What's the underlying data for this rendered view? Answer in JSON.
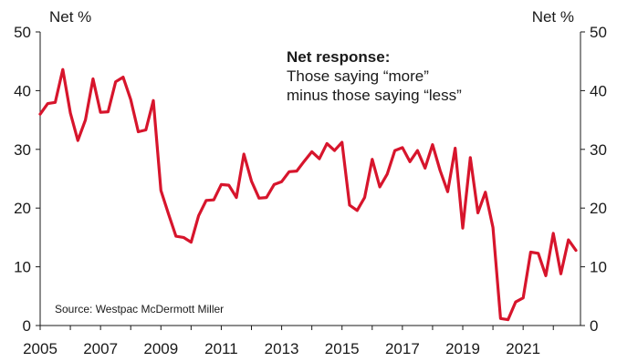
{
  "chart_data": {
    "type": "line",
    "title": "",
    "xlabel": "",
    "ylabel_left": "Net %",
    "ylabel_right": "Net %",
    "ylim": [
      0,
      50
    ],
    "xlim": [
      2005,
      2022.9
    ],
    "y_ticks": [
      0,
      10,
      20,
      30,
      40,
      50
    ],
    "x_ticks": [
      2005,
      2007,
      2009,
      2011,
      2013,
      2015,
      2017,
      2019,
      2021
    ],
    "grid": false,
    "annotation": {
      "heading": "Net response:",
      "line1": "Those saying “more”",
      "line2": "minus those saying “less”"
    },
    "source": "Source: Westpac McDermott Miller",
    "series": [
      {
        "color": "#d7152c",
        "points": [
          [
            2005.0,
            36.0
          ],
          [
            2005.25,
            37.8
          ],
          [
            2005.5,
            38.0
          ],
          [
            2005.75,
            43.6
          ],
          [
            2006.0,
            36.2
          ],
          [
            2006.25,
            31.5
          ],
          [
            2006.5,
            35.0
          ],
          [
            2006.75,
            42.0
          ],
          [
            2007.0,
            36.3
          ],
          [
            2007.25,
            36.4
          ],
          [
            2007.5,
            41.5
          ],
          [
            2007.75,
            42.3
          ],
          [
            2008.0,
            38.5
          ],
          [
            2008.25,
            33.0
          ],
          [
            2008.5,
            33.3
          ],
          [
            2008.75,
            38.3
          ],
          [
            2009.0,
            23.0
          ],
          [
            2009.25,
            19.0
          ],
          [
            2009.5,
            15.2
          ],
          [
            2009.75,
            15.0
          ],
          [
            2010.0,
            14.2
          ],
          [
            2010.25,
            18.7
          ],
          [
            2010.5,
            21.3
          ],
          [
            2010.75,
            21.4
          ],
          [
            2011.0,
            24.0
          ],
          [
            2011.25,
            23.9
          ],
          [
            2011.5,
            21.8
          ],
          [
            2011.75,
            29.2
          ],
          [
            2012.0,
            24.6
          ],
          [
            2012.25,
            21.7
          ],
          [
            2012.5,
            21.8
          ],
          [
            2012.75,
            24.0
          ],
          [
            2013.0,
            24.5
          ],
          [
            2013.25,
            26.2
          ],
          [
            2013.5,
            26.3
          ],
          [
            2013.75,
            28.0
          ],
          [
            2014.0,
            29.6
          ],
          [
            2014.25,
            28.4
          ],
          [
            2014.5,
            31.0
          ],
          [
            2014.75,
            29.8
          ],
          [
            2015.0,
            31.2
          ],
          [
            2015.25,
            20.5
          ],
          [
            2015.5,
            19.6
          ],
          [
            2015.75,
            21.8
          ],
          [
            2016.0,
            28.3
          ],
          [
            2016.25,
            23.6
          ],
          [
            2016.5,
            25.8
          ],
          [
            2016.75,
            29.8
          ],
          [
            2017.0,
            30.3
          ],
          [
            2017.25,
            27.9
          ],
          [
            2017.5,
            29.8
          ],
          [
            2017.75,
            26.8
          ],
          [
            2018.0,
            30.8
          ],
          [
            2018.25,
            26.4
          ],
          [
            2018.5,
            22.8
          ],
          [
            2018.75,
            30.2
          ],
          [
            2019.0,
            16.6
          ],
          [
            2019.25,
            28.6
          ],
          [
            2019.5,
            19.2
          ],
          [
            2019.75,
            22.7
          ],
          [
            2020.0,
            16.7
          ],
          [
            2020.25,
            1.2
          ],
          [
            2020.5,
            1.0
          ],
          [
            2020.75,
            4.0
          ],
          [
            2021.0,
            4.7
          ],
          [
            2021.25,
            12.5
          ],
          [
            2021.5,
            12.3
          ],
          [
            2021.75,
            8.5
          ],
          [
            2022.0,
            15.7
          ],
          [
            2022.25,
            8.8
          ],
          [
            2022.5,
            14.6
          ],
          [
            2022.75,
            12.8
          ]
        ]
      }
    ]
  }
}
